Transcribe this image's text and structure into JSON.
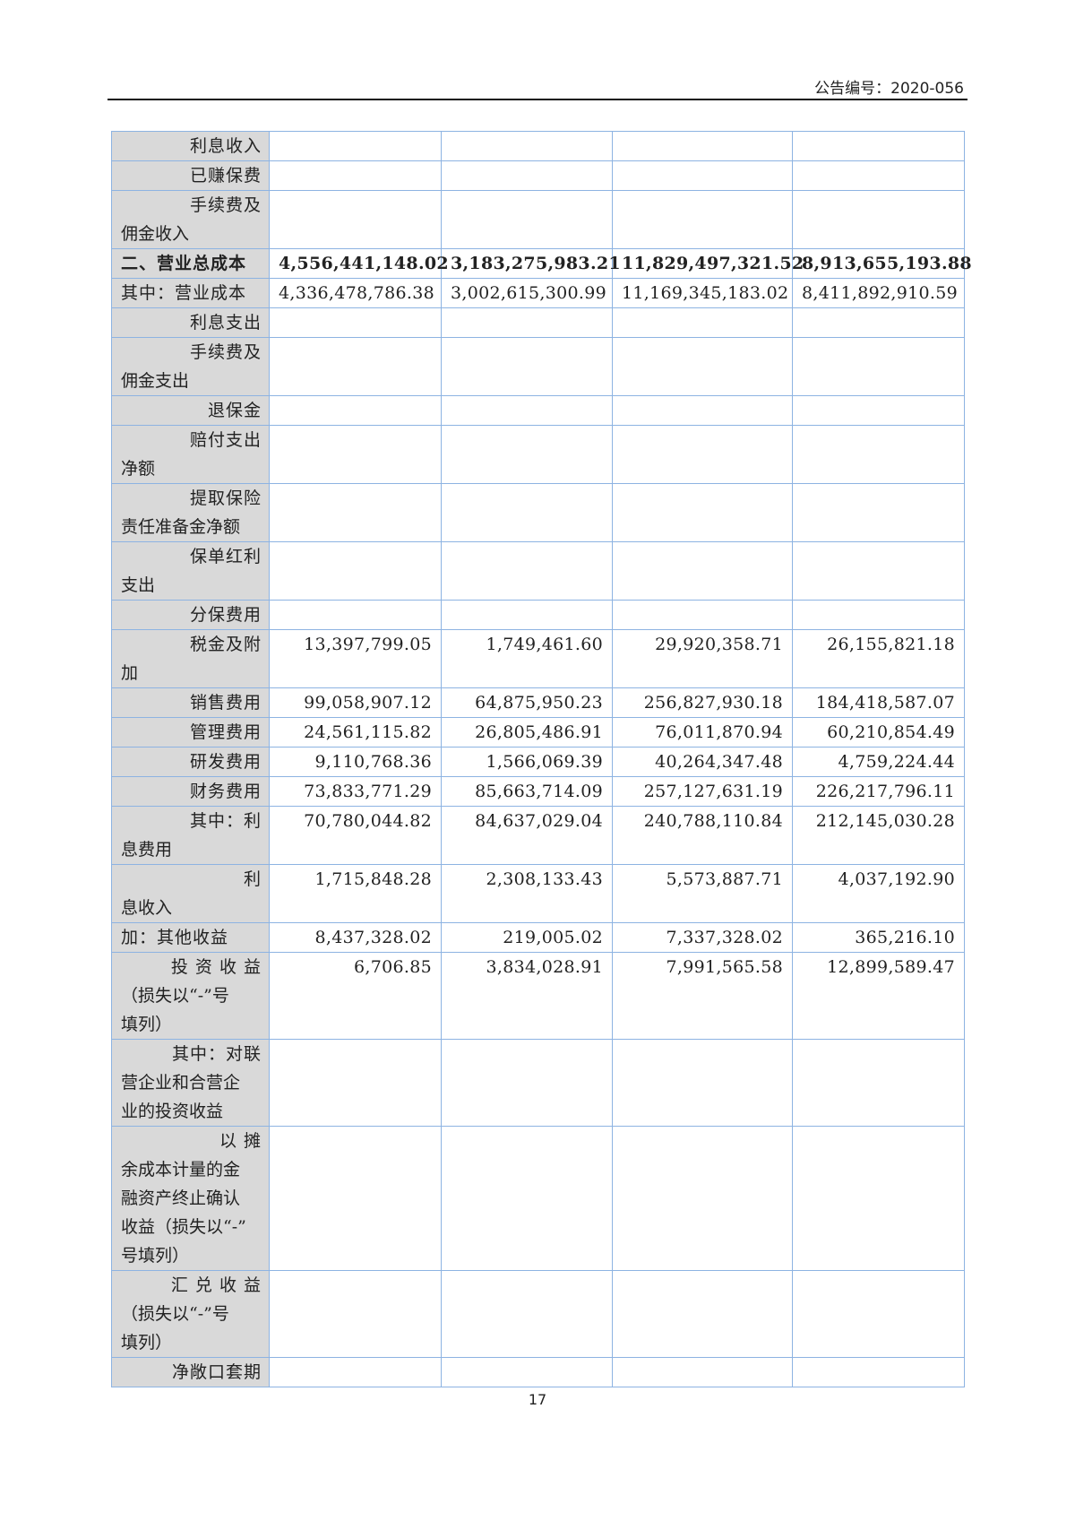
{
  "header": {
    "announcement_no": "公告编号：2020-056"
  },
  "table": {
    "rows": [
      {
        "label": [
          "利息收入"
        ],
        "values": [
          "",
          "",
          "",
          ""
        ]
      },
      {
        "label": [
          "已赚保费"
        ],
        "values": [
          "",
          "",
          "",
          ""
        ]
      },
      {
        "label": [
          "手续费及",
          "佣金收入"
        ],
        "values": [
          "",
          "",
          "",
          ""
        ]
      },
      {
        "label": [
          "二、营业总成本"
        ],
        "full": true,
        "bold": true,
        "values": [
          "4,556,441,148.02",
          "3,183,275,983.21",
          "11,829,497,321.52",
          "8,913,655,193.88"
        ]
      },
      {
        "label": [
          "其中：营业成本"
        ],
        "full": true,
        "values": [
          "4,336,478,786.38",
          "3,002,615,300.99",
          "11,169,345,183.02",
          "8,411,892,910.59"
        ]
      },
      {
        "label": [
          "利息支出"
        ],
        "values": [
          "",
          "",
          "",
          ""
        ]
      },
      {
        "label": [
          "手续费及",
          "佣金支出"
        ],
        "values": [
          "",
          "",
          "",
          ""
        ]
      },
      {
        "label": [
          "退保金"
        ],
        "values": [
          "",
          "",
          "",
          ""
        ]
      },
      {
        "label": [
          "赔付支出",
          "净额"
        ],
        "values": [
          "",
          "",
          "",
          ""
        ]
      },
      {
        "label": [
          "提取保险",
          "责任准备金净额"
        ],
        "values": [
          "",
          "",
          "",
          ""
        ]
      },
      {
        "label": [
          "保单红利",
          "支出"
        ],
        "values": [
          "",
          "",
          "",
          ""
        ]
      },
      {
        "label": [
          "分保费用"
        ],
        "values": [
          "",
          "",
          "",
          ""
        ]
      },
      {
        "label": [
          "税金及附",
          "加"
        ],
        "values": [
          "13,397,799.05",
          "1,749,461.60",
          "29,920,358.71",
          "26,155,821.18"
        ]
      },
      {
        "label": [
          "销售费用"
        ],
        "values": [
          "99,058,907.12",
          "64,875,950.23",
          "256,827,930.18",
          "184,418,587.07"
        ]
      },
      {
        "label": [
          "管理费用"
        ],
        "values": [
          "24,561,115.82",
          "26,805,486.91",
          "76,011,870.94",
          "60,210,854.49"
        ]
      },
      {
        "label": [
          "研发费用"
        ],
        "values": [
          "9,110,768.36",
          "1,566,069.39",
          "40,264,347.48",
          "4,759,224.44"
        ]
      },
      {
        "label": [
          "财务费用"
        ],
        "values": [
          "73,833,771.29",
          "85,663,714.09",
          "257,127,631.19",
          "226,217,796.11"
        ]
      },
      {
        "label": [
          "其中：利",
          "息费用"
        ],
        "values": [
          "70,780,044.82",
          "84,637,029.04",
          "240,788,110.84",
          "212,145,030.28"
        ]
      },
      {
        "label": [
          "利",
          "息收入"
        ],
        "values": [
          "1,715,848.28",
          "2,308,133.43",
          "5,573,887.71",
          "4,037,192.90"
        ]
      },
      {
        "label": [
          "加：其他收益"
        ],
        "full": true,
        "values": [
          "8,437,328.02",
          "219,005.02",
          "7,337,328.02",
          "365,216.10"
        ]
      },
      {
        "label": [
          "投 资 收 益",
          "（损失以“-”号",
          "填列）"
        ],
        "values": [
          "6,706.85",
          "3,834,028.91",
          "7,991,565.58",
          "12,899,589.47"
        ]
      },
      {
        "label": [
          "其中：对联",
          "营企业和合营企",
          "业的投资收益"
        ],
        "values": [
          "",
          "",
          "",
          ""
        ]
      },
      {
        "label": [
          "以 摊",
          "余成本计量的金",
          "融资产终止确认",
          "收益（损失以“-”",
          "号填列）"
        ],
        "values": [
          "",
          "",
          "",
          ""
        ]
      },
      {
        "label": [
          "汇 兑 收 益",
          "（损失以“-”号",
          "填列）"
        ],
        "values": [
          "",
          "",
          "",
          ""
        ]
      },
      {
        "label": [
          "净敞口套期"
        ],
        "values": [
          "",
          "",
          "",
          ""
        ]
      }
    ]
  },
  "footer": {
    "page_number": "17"
  },
  "colors": {
    "border": "#8db3e2",
    "label_bg": "#d9d9d9"
  }
}
